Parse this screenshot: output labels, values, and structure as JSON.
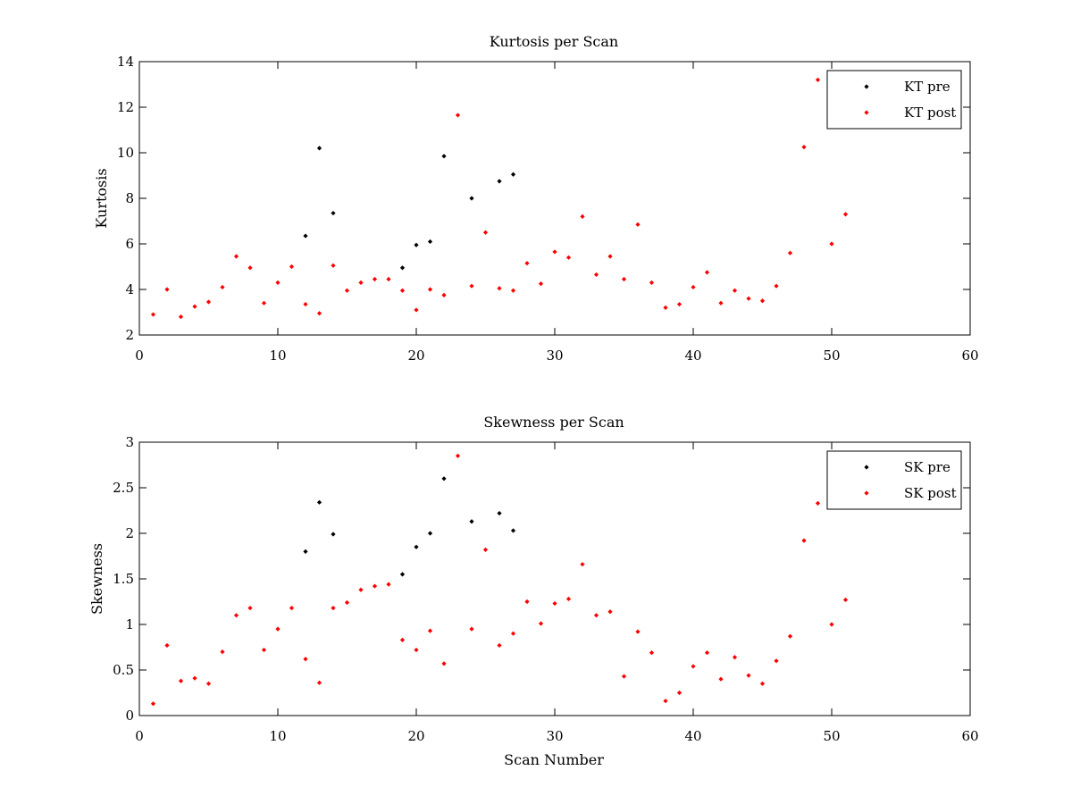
{
  "chart_data": [
    {
      "type": "scatter",
      "title": "Kurtosis per Scan",
      "xlabel": "",
      "ylabel": "Kurtosis",
      "xlim": [
        0,
        60
      ],
      "ylim": [
        2,
        14
      ],
      "xticks": [
        0,
        10,
        20,
        30,
        40,
        50,
        60
      ],
      "yticks": [
        2,
        4,
        6,
        8,
        10,
        12,
        14
      ],
      "legend_position": "top-right",
      "series": [
        {
          "name": "KT pre",
          "color": "#000000",
          "points": [
            [
              12,
              6.35
            ],
            [
              13,
              10.2
            ],
            [
              14,
              7.35
            ],
            [
              19,
              4.95
            ],
            [
              20,
              5.95
            ],
            [
              21,
              6.1
            ],
            [
              22,
              9.85
            ],
            [
              24,
              8.0
            ],
            [
              26,
              8.75
            ],
            [
              27,
              9.05
            ]
          ]
        },
        {
          "name": "KT post",
          "color": "#ff0000",
          "points": [
            [
              1,
              2.9
            ],
            [
              2,
              4.0
            ],
            [
              3,
              2.8
            ],
            [
              4,
              3.25
            ],
            [
              5,
              3.45
            ],
            [
              6,
              4.1
            ],
            [
              7,
              5.45
            ],
            [
              8,
              4.95
            ],
            [
              9,
              3.4
            ],
            [
              10,
              4.3
            ],
            [
              11,
              5.0
            ],
            [
              12,
              3.35
            ],
            [
              13,
              2.95
            ],
            [
              14,
              5.05
            ],
            [
              15,
              3.95
            ],
            [
              16,
              4.3
            ],
            [
              17,
              4.45
            ],
            [
              18,
              4.45
            ],
            [
              19,
              3.95
            ],
            [
              20,
              3.1
            ],
            [
              21,
              4.0
            ],
            [
              22,
              3.75
            ],
            [
              23,
              11.65
            ],
            [
              24,
              4.15
            ],
            [
              25,
              6.5
            ],
            [
              26,
              4.05
            ],
            [
              27,
              3.95
            ],
            [
              28,
              5.15
            ],
            [
              29,
              4.25
            ],
            [
              30,
              5.65
            ],
            [
              31,
              5.4
            ],
            [
              32,
              7.2
            ],
            [
              33,
              4.65
            ],
            [
              34,
              5.45
            ],
            [
              35,
              4.45
            ],
            [
              36,
              6.85
            ],
            [
              37,
              4.3
            ],
            [
              38,
              3.2
            ],
            [
              39,
              3.35
            ],
            [
              40,
              4.1
            ],
            [
              41,
              4.75
            ],
            [
              42,
              3.4
            ],
            [
              43,
              3.95
            ],
            [
              44,
              3.6
            ],
            [
              45,
              3.5
            ],
            [
              46,
              4.15
            ],
            [
              47,
              5.6
            ],
            [
              48,
              10.25
            ],
            [
              49,
              13.2
            ],
            [
              50,
              6.0
            ],
            [
              51,
              7.3
            ]
          ]
        }
      ]
    },
    {
      "type": "scatter",
      "title": "Skewness per Scan",
      "xlabel": "Scan Number",
      "ylabel": "Skewness",
      "xlim": [
        0,
        60
      ],
      "ylim": [
        0,
        3
      ],
      "xticks": [
        0,
        10,
        20,
        30,
        40,
        50,
        60
      ],
      "yticks": [
        0,
        0.5,
        1,
        1.5,
        2,
        2.5,
        3
      ],
      "legend_position": "top-right",
      "series": [
        {
          "name": "SK pre",
          "color": "#000000",
          "points": [
            [
              12,
              1.8
            ],
            [
              13,
              2.34
            ],
            [
              14,
              1.99
            ],
            [
              19,
              1.55
            ],
            [
              20,
              1.85
            ],
            [
              21,
              2.0
            ],
            [
              22,
              2.6
            ],
            [
              24,
              2.13
            ],
            [
              26,
              2.22
            ],
            [
              27,
              2.03
            ]
          ]
        },
        {
          "name": "SK post",
          "color": "#ff0000",
          "points": [
            [
              1,
              0.13
            ],
            [
              2,
              0.77
            ],
            [
              3,
              0.38
            ],
            [
              4,
              0.41
            ],
            [
              5,
              0.35
            ],
            [
              6,
              0.7
            ],
            [
              7,
              1.1
            ],
            [
              8,
              1.18
            ],
            [
              9,
              0.72
            ],
            [
              10,
              0.95
            ],
            [
              11,
              1.18
            ],
            [
              12,
              0.62
            ],
            [
              13,
              0.36
            ],
            [
              14,
              1.18
            ],
            [
              15,
              1.24
            ],
            [
              16,
              1.38
            ],
            [
              17,
              1.42
            ],
            [
              18,
              1.44
            ],
            [
              19,
              0.83
            ],
            [
              20,
              0.72
            ],
            [
              21,
              0.93
            ],
            [
              22,
              0.57
            ],
            [
              23,
              2.85
            ],
            [
              24,
              0.95
            ],
            [
              25,
              1.82
            ],
            [
              26,
              0.77
            ],
            [
              27,
              0.9
            ],
            [
              28,
              1.25
            ],
            [
              29,
              1.01
            ],
            [
              30,
              1.23
            ],
            [
              31,
              1.28
            ],
            [
              32,
              1.66
            ],
            [
              33,
              1.1
            ],
            [
              34,
              1.14
            ],
            [
              35,
              0.43
            ],
            [
              36,
              0.92
            ],
            [
              37,
              0.69
            ],
            [
              38,
              0.16
            ],
            [
              39,
              0.25
            ],
            [
              40,
              0.54
            ],
            [
              41,
              0.69
            ],
            [
              42,
              0.4
            ],
            [
              43,
              0.64
            ],
            [
              44,
              0.44
            ],
            [
              45,
              0.35
            ],
            [
              46,
              0.6
            ],
            [
              47,
              0.87
            ],
            [
              48,
              1.92
            ],
            [
              49,
              2.33
            ],
            [
              50,
              1.0
            ],
            [
              51,
              1.27
            ]
          ]
        }
      ]
    }
  ]
}
